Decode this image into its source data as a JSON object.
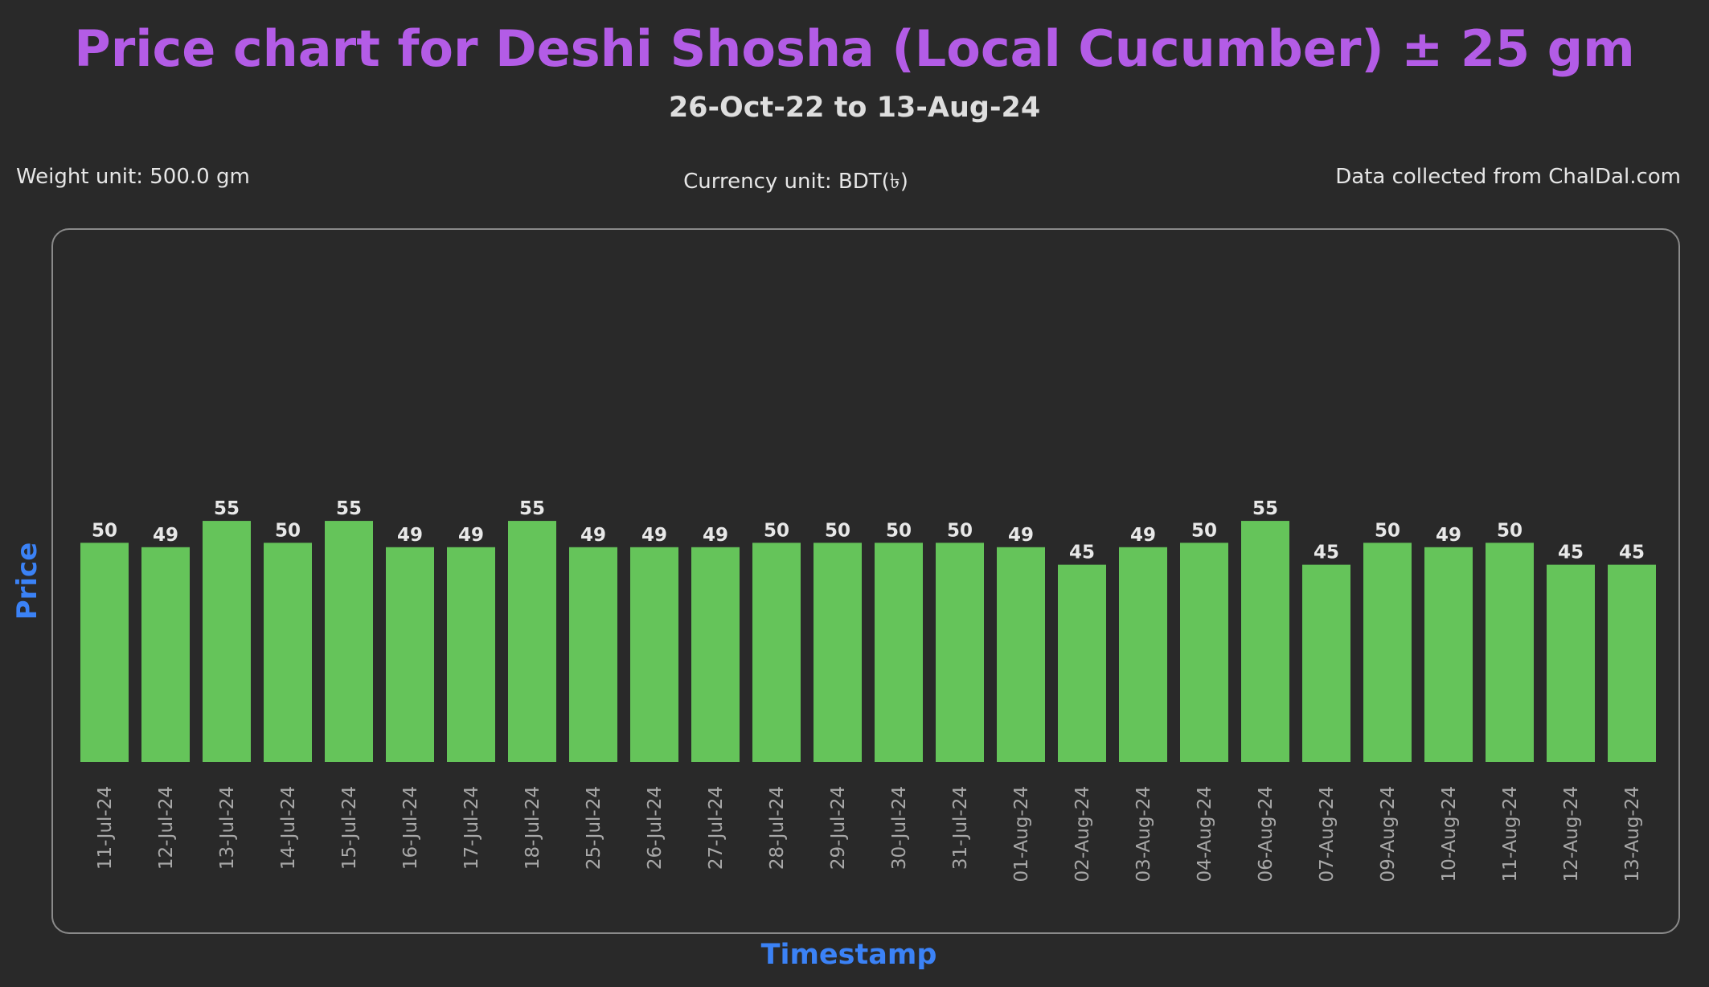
{
  "header": {
    "title": "Price chart for Deshi Shosha (Local Cucumber) ± 25 gm",
    "subtitle": "26-Oct-22 to 13-Aug-24"
  },
  "info": {
    "weight_unit": "Weight unit: 500.0 gm",
    "currency_unit": "Currency unit: BDT(৳)",
    "source": "Data collected from ChalDal.com"
  },
  "colors": {
    "bar": "#65c45a",
    "title": "#b35ce6",
    "axis_label": "#3b82f6",
    "background": "#292929"
  },
  "chart_data": {
    "type": "bar",
    "title": "Price chart for Deshi Shosha (Local Cucumber) ± 25 gm",
    "xlabel": "Timestamp",
    "ylabel": "Price",
    "ylim": [
      0,
      117
    ],
    "grid": false,
    "categories": [
      "11-Jul-24",
      "12-Jul-24",
      "13-Jul-24",
      "14-Jul-24",
      "15-Jul-24",
      "16-Jul-24",
      "17-Jul-24",
      "18-Jul-24",
      "25-Jul-24",
      "26-Jul-24",
      "27-Jul-24",
      "28-Jul-24",
      "29-Jul-24",
      "30-Jul-24",
      "31-Jul-24",
      "01-Aug-24",
      "02-Aug-24",
      "03-Aug-24",
      "04-Aug-24",
      "06-Aug-24",
      "07-Aug-24",
      "09-Aug-24",
      "10-Aug-24",
      "11-Aug-24",
      "12-Aug-24",
      "13-Aug-24"
    ],
    "values": [
      50,
      49,
      55,
      50,
      55,
      49,
      49,
      55,
      49,
      49,
      49,
      50,
      50,
      50,
      50,
      49,
      45,
      49,
      50,
      55,
      45,
      50,
      49,
      50,
      45,
      45
    ]
  }
}
